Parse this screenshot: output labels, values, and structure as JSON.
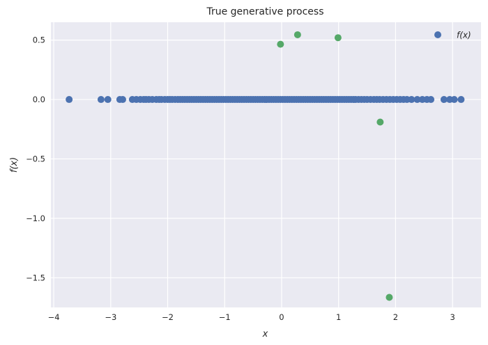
{
  "chart_data": {
    "type": "scatter",
    "title": "True generative process",
    "xlabel": "x",
    "ylabel": "f(x)",
    "xlim": [
      -4.05,
      3.5
    ],
    "ylim": [
      -1.75,
      0.65
    ],
    "xticks": [
      -4,
      -3,
      -2,
      -1,
      0,
      1,
      2,
      3
    ],
    "xtick_labels": [
      "−4",
      "−3",
      "−2",
      "−1",
      "0",
      "1",
      "2",
      "3"
    ],
    "yticks": [
      0.5,
      0.0,
      -0.5,
      -1.0,
      -1.5
    ],
    "ytick_labels": [
      "0.5",
      "0.0",
      "−0.5",
      "−1.0",
      "−1.5"
    ],
    "grid": true,
    "legend_position": "top-right",
    "colors": {
      "background": "#eaeaf2",
      "grid": "#ffffff",
      "series1": "#4c72b0",
      "series2": "#55a868"
    },
    "series": [
      {
        "name": "f(x)",
        "color": "#4c72b0",
        "x": [
          -3.73,
          -3.17,
          -3.05,
          -2.84,
          -2.79,
          -2.62,
          -2.55,
          -2.48,
          -2.42,
          -2.38,
          -2.33,
          -2.27,
          -2.2,
          -2.15,
          -2.11,
          -2.05,
          -2.0,
          -1.96,
          -1.92,
          -1.87,
          -1.82,
          -1.78,
          -1.74,
          -1.7,
          -1.66,
          -1.62,
          -1.58,
          -1.54,
          -1.5,
          -1.46,
          -1.42,
          -1.38,
          -1.34,
          -1.3,
          -1.26,
          -1.22,
          -1.18,
          -1.14,
          -1.1,
          -1.06,
          -1.02,
          -0.98,
          -0.94,
          -0.9,
          -0.86,
          -0.82,
          -0.78,
          -0.74,
          -0.7,
          -0.66,
          -0.62,
          -0.58,
          -0.54,
          -0.5,
          -0.46,
          -0.42,
          -0.38,
          -0.34,
          -0.3,
          -0.26,
          -0.22,
          -0.18,
          -0.14,
          -0.1,
          -0.06,
          -0.02,
          0.02,
          0.06,
          0.1,
          0.14,
          0.18,
          0.22,
          0.26,
          0.3,
          0.34,
          0.38,
          0.42,
          0.46,
          0.5,
          0.54,
          0.58,
          0.62,
          0.66,
          0.7,
          0.74,
          0.78,
          0.82,
          0.86,
          0.9,
          0.94,
          0.98,
          1.02,
          1.06,
          1.1,
          1.14,
          1.18,
          1.22,
          1.26,
          1.3,
          1.35,
          1.4,
          1.45,
          1.5,
          1.56,
          1.62,
          1.67,
          1.72,
          1.78,
          1.84,
          1.9,
          1.96,
          2.02,
          2.08,
          2.14,
          2.2,
          2.28,
          2.38,
          2.47,
          2.55,
          2.62,
          2.85,
          2.95,
          3.03,
          3.15
        ],
        "y": [
          0,
          0,
          0,
          0,
          0,
          0,
          0,
          0,
          0,
          0,
          0,
          0,
          0,
          0,
          0,
          0,
          0,
          0,
          0,
          0,
          0,
          0,
          0,
          0,
          0,
          0,
          0,
          0,
          0,
          0,
          0,
          0,
          0,
          0,
          0,
          0,
          0,
          0,
          0,
          0,
          0,
          0,
          0,
          0,
          0,
          0,
          0,
          0,
          0,
          0,
          0,
          0,
          0,
          0,
          0,
          0,
          0,
          0,
          0,
          0,
          0,
          0,
          0,
          0,
          0,
          0,
          0,
          0,
          0,
          0,
          0,
          0,
          0,
          0,
          0,
          0,
          0,
          0,
          0,
          0,
          0,
          0,
          0,
          0,
          0,
          0,
          0,
          0,
          0,
          0,
          0,
          0,
          0,
          0,
          0,
          0,
          0,
          0,
          0,
          0,
          0,
          0,
          0,
          0,
          0,
          0,
          0,
          0,
          0,
          0,
          0,
          0,
          0,
          0,
          0,
          0,
          0,
          0,
          0,
          0,
          0,
          0,
          0,
          0
        ]
      },
      {
        "color": "#55a868",
        "x": [
          -0.02,
          0.28,
          0.99,
          1.73,
          1.89
        ],
        "y": [
          0.465,
          0.545,
          0.52,
          -0.19,
          -1.665
        ]
      }
    ]
  }
}
